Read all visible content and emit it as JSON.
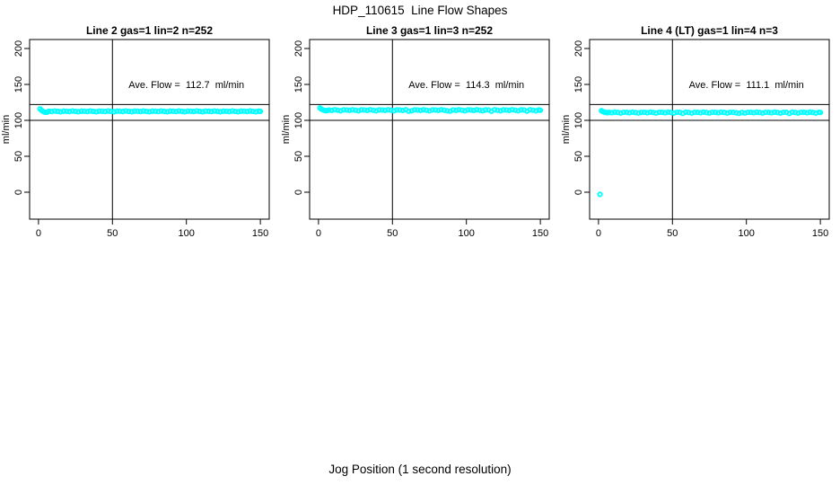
{
  "figure": {
    "title": "HDP_110615  Line Flow Shapes",
    "xlabel": "Jog Position (1 second resolution)"
  },
  "colors": {
    "points": "#00ffff",
    "axis": "#000000",
    "reference_lines": "#000000",
    "background": "#ffffff"
  },
  "chart_data": [
    {
      "type": "scatter",
      "title": "Line 2 gas=1 lin=2 n=252",
      "params": {
        "line": 2,
        "gas": 1,
        "lin": 2,
        "n": 252
      },
      "ylabel": "ml/min",
      "xlim": [
        0,
        150
      ],
      "ylim": [
        0,
        200
      ],
      "xticks": [
        0,
        50,
        100,
        150
      ],
      "yticks": [
        0,
        50,
        100,
        150,
        200
      ],
      "grid": false,
      "legend": "none",
      "hlines": [
        100,
        122
      ],
      "vlines": [
        50
      ],
      "marker": "open-circle",
      "ave_flow_ml_min": 112.7,
      "annotation": {
        "text": "Ave. Flow =  112.7  ml/min",
        "x": 100,
        "y": 150
      },
      "points": [
        [
          1,
          116
        ],
        [
          2,
          114
        ],
        [
          3,
          112.6
        ],
        [
          4,
          111.6
        ],
        [
          5,
          111.2
        ],
        [
          6,
          111.5
        ],
        [
          7,
          112.7
        ],
        [
          9,
          112.3
        ],
        [
          11,
          113
        ],
        [
          13,
          112.5
        ],
        [
          15,
          112
        ],
        [
          17,
          112.8
        ],
        [
          19,
          112.7
        ],
        [
          21,
          112.3
        ],
        [
          23,
          113
        ],
        [
          25,
          112.5
        ],
        [
          27,
          112
        ],
        [
          29,
          112.8
        ],
        [
          31,
          112.7
        ],
        [
          33,
          112.3
        ],
        [
          35,
          113
        ],
        [
          37,
          112.5
        ],
        [
          39,
          112
        ],
        [
          41,
          112.8
        ],
        [
          43,
          112.7
        ],
        [
          45,
          112.3
        ],
        [
          47,
          113
        ],
        [
          49,
          112.5
        ],
        [
          51,
          112
        ],
        [
          53,
          112.8
        ],
        [
          55,
          112.7
        ],
        [
          57,
          112.3
        ],
        [
          59,
          113
        ],
        [
          61,
          112.5
        ],
        [
          63,
          112
        ],
        [
          65,
          112.8
        ],
        [
          67,
          112.7
        ],
        [
          69,
          112.3
        ],
        [
          71,
          113
        ],
        [
          73,
          112.5
        ],
        [
          75,
          112
        ],
        [
          77,
          112.8
        ],
        [
          79,
          112.7
        ],
        [
          81,
          112.3
        ],
        [
          83,
          113
        ],
        [
          85,
          112.5
        ],
        [
          87,
          112
        ],
        [
          89,
          112.8
        ],
        [
          91,
          112.7
        ],
        [
          93,
          112.3
        ],
        [
          95,
          113
        ],
        [
          97,
          112.5
        ],
        [
          99,
          112
        ],
        [
          101,
          112.8
        ],
        [
          103,
          112.7
        ],
        [
          105,
          112.3
        ],
        [
          107,
          113
        ],
        [
          109,
          112.5
        ],
        [
          111,
          112
        ],
        [
          113,
          112.8
        ],
        [
          115,
          112.7
        ],
        [
          117,
          112.3
        ],
        [
          119,
          113
        ],
        [
          121,
          112.5
        ],
        [
          123,
          112
        ],
        [
          125,
          112.8
        ],
        [
          127,
          112.7
        ],
        [
          129,
          112.3
        ],
        [
          131,
          113
        ],
        [
          133,
          112.5
        ],
        [
          135,
          112
        ],
        [
          137,
          112.8
        ],
        [
          139,
          112.7
        ],
        [
          141,
          112.3
        ],
        [
          143,
          113
        ],
        [
          145,
          112.5
        ],
        [
          147,
          112
        ],
        [
          149,
          112.8
        ],
        [
          150,
          112.5
        ]
      ]
    },
    {
      "type": "scatter",
      "title": "Line 3 gas=1 lin=3 n=252",
      "params": {
        "line": 3,
        "gas": 1,
        "lin": 3,
        "n": 252
      },
      "ylabel": "ml/min",
      "xlim": [
        0,
        150
      ],
      "ylim": [
        0,
        200
      ],
      "xticks": [
        0,
        50,
        100,
        150
      ],
      "yticks": [
        0,
        50,
        100,
        150,
        200
      ],
      "grid": false,
      "legend": "none",
      "hlines": [
        100,
        122
      ],
      "vlines": [
        50
      ],
      "marker": "open-circle",
      "ave_flow_ml_min": 114.3,
      "annotation": {
        "text": "Ave. Flow =  114.3  ml/min",
        "x": 100,
        "y": 150
      },
      "points": [
        [
          1,
          117.2
        ],
        [
          2,
          115.6
        ],
        [
          3,
          114.6
        ],
        [
          4,
          113.8
        ],
        [
          5,
          113.4
        ],
        [
          6,
          113.7
        ],
        [
          7,
          114.4
        ],
        [
          9,
          113.9
        ],
        [
          11,
          114.7
        ],
        [
          13,
          114.1
        ],
        [
          15,
          113.3
        ],
        [
          17,
          114.5
        ],
        [
          19,
          114.4
        ],
        [
          21,
          113.9
        ],
        [
          23,
          114.7
        ],
        [
          25,
          114.1
        ],
        [
          27,
          113.3
        ],
        [
          29,
          114.5
        ],
        [
          31,
          114.4
        ],
        [
          33,
          113.9
        ],
        [
          35,
          114.7
        ],
        [
          37,
          114.1
        ],
        [
          39,
          113.3
        ],
        [
          41,
          114.5
        ],
        [
          43,
          114.4
        ],
        [
          45,
          113.9
        ],
        [
          47,
          114.7
        ],
        [
          49,
          114.1
        ],
        [
          51,
          113.3
        ],
        [
          53,
          114.5
        ],
        [
          55,
          114.4
        ],
        [
          57,
          113.9
        ],
        [
          59,
          114.7
        ],
        [
          61,
          112.8
        ],
        [
          63,
          113.3
        ],
        [
          65,
          114.5
        ],
        [
          67,
          114.4
        ],
        [
          69,
          113.9
        ],
        [
          71,
          114.7
        ],
        [
          73,
          114.1
        ],
        [
          75,
          113.3
        ],
        [
          77,
          114.5
        ],
        [
          79,
          114.4
        ],
        [
          81,
          113.9
        ],
        [
          83,
          114.7
        ],
        [
          85,
          114.1
        ],
        [
          87,
          113.3
        ],
        [
          89,
          112.9
        ],
        [
          91,
          114.4
        ],
        [
          93,
          113.9
        ],
        [
          95,
          114.7
        ],
        [
          97,
          114.1
        ],
        [
          99,
          113.3
        ],
        [
          101,
          114.5
        ],
        [
          103,
          114.4
        ],
        [
          105,
          113.9
        ],
        [
          107,
          114.7
        ],
        [
          109,
          114.1
        ],
        [
          111,
          113.3
        ],
        [
          113,
          114.5
        ],
        [
          115,
          114.4
        ],
        [
          117,
          112.7
        ],
        [
          119,
          114.7
        ],
        [
          121,
          114.1
        ],
        [
          123,
          113.3
        ],
        [
          125,
          114.5
        ],
        [
          127,
          114.4
        ],
        [
          129,
          113.9
        ],
        [
          131,
          114.7
        ],
        [
          133,
          114.1
        ],
        [
          135,
          113.3
        ],
        [
          137,
          114.5
        ],
        [
          139,
          114.4
        ],
        [
          141,
          112.9
        ],
        [
          143,
          114.7
        ],
        [
          145,
          114.1
        ],
        [
          147,
          113.3
        ],
        [
          149,
          114.5
        ],
        [
          150,
          114
        ]
      ]
    },
    {
      "type": "scatter",
      "title": "Line 4 (LT) gas=1 lin=4 n=3",
      "params": {
        "line": 4,
        "line_suffix": "(LT)",
        "gas": 1,
        "lin": 4,
        "n": 3
      },
      "ylabel": "ml/min",
      "xlim": [
        0,
        150
      ],
      "ylim": [
        0,
        200
      ],
      "xticks": [
        0,
        50,
        100,
        150
      ],
      "yticks": [
        0,
        50,
        100,
        150,
        200
      ],
      "grid": false,
      "legend": "none",
      "hlines": [
        100,
        122
      ],
      "vlines": [
        50
      ],
      "marker": "open-circle",
      "ave_flow_ml_min": 111.1,
      "annotation": {
        "text": "Ave. Flow =  111.1  ml/min",
        "x": 100,
        "y": 150
      },
      "points": [
        [
          1,
          -3
        ],
        [
          2,
          113.4
        ],
        [
          3,
          112.2
        ],
        [
          4,
          111.4
        ],
        [
          5,
          110.9
        ],
        [
          6,
          110.6
        ],
        [
          7,
          111.1
        ],
        [
          9,
          110.6
        ],
        [
          11,
          111.4
        ],
        [
          13,
          110.9
        ],
        [
          15,
          110.2
        ],
        [
          17,
          111.2
        ],
        [
          19,
          111.1
        ],
        [
          21,
          110.6
        ],
        [
          23,
          111.4
        ],
        [
          25,
          110.9
        ],
        [
          27,
          110.2
        ],
        [
          29,
          111.2
        ],
        [
          31,
          111.1
        ],
        [
          33,
          110.6
        ],
        [
          35,
          111.4
        ],
        [
          37,
          110.9
        ],
        [
          39,
          110.2
        ],
        [
          41,
          111.2
        ],
        [
          43,
          111.1
        ],
        [
          45,
          110.6
        ],
        [
          47,
          111.4
        ],
        [
          49,
          110.9
        ],
        [
          51,
          110.2
        ],
        [
          53,
          111.2
        ],
        [
          55,
          111.1
        ],
        [
          57,
          109.7
        ],
        [
          59,
          111.4
        ],
        [
          61,
          110.9
        ],
        [
          63,
          110.2
        ],
        [
          65,
          111.2
        ],
        [
          67,
          111.1
        ],
        [
          69,
          110.6
        ],
        [
          71,
          111.4
        ],
        [
          73,
          110.9
        ],
        [
          75,
          110.2
        ],
        [
          77,
          111.2
        ],
        [
          79,
          111.1
        ],
        [
          81,
          110.6
        ],
        [
          83,
          111.4
        ],
        [
          85,
          110.9
        ],
        [
          87,
          110.2
        ],
        [
          89,
          111.2
        ],
        [
          91,
          111.1
        ],
        [
          93,
          110.6
        ],
        [
          95,
          109.8
        ],
        [
          97,
          110.9
        ],
        [
          99,
          110.2
        ],
        [
          101,
          111.2
        ],
        [
          103,
          111.1
        ],
        [
          105,
          110.6
        ],
        [
          107,
          111.4
        ],
        [
          109,
          110.9
        ],
        [
          111,
          110.2
        ],
        [
          113,
          111.2
        ],
        [
          115,
          111.1
        ],
        [
          117,
          110.6
        ],
        [
          119,
          111.4
        ],
        [
          121,
          110.9
        ],
        [
          123,
          110.2
        ],
        [
          125,
          111.2
        ],
        [
          127,
          111.1
        ],
        [
          129,
          109.6
        ],
        [
          131,
          111.4
        ],
        [
          133,
          110.9
        ],
        [
          135,
          110.2
        ],
        [
          137,
          111.2
        ],
        [
          139,
          111.1
        ],
        [
          141,
          110.6
        ],
        [
          143,
          111.4
        ],
        [
          145,
          110.9
        ],
        [
          147,
          110.2
        ],
        [
          149,
          111.2
        ],
        [
          150,
          110.9
        ]
      ]
    }
  ]
}
